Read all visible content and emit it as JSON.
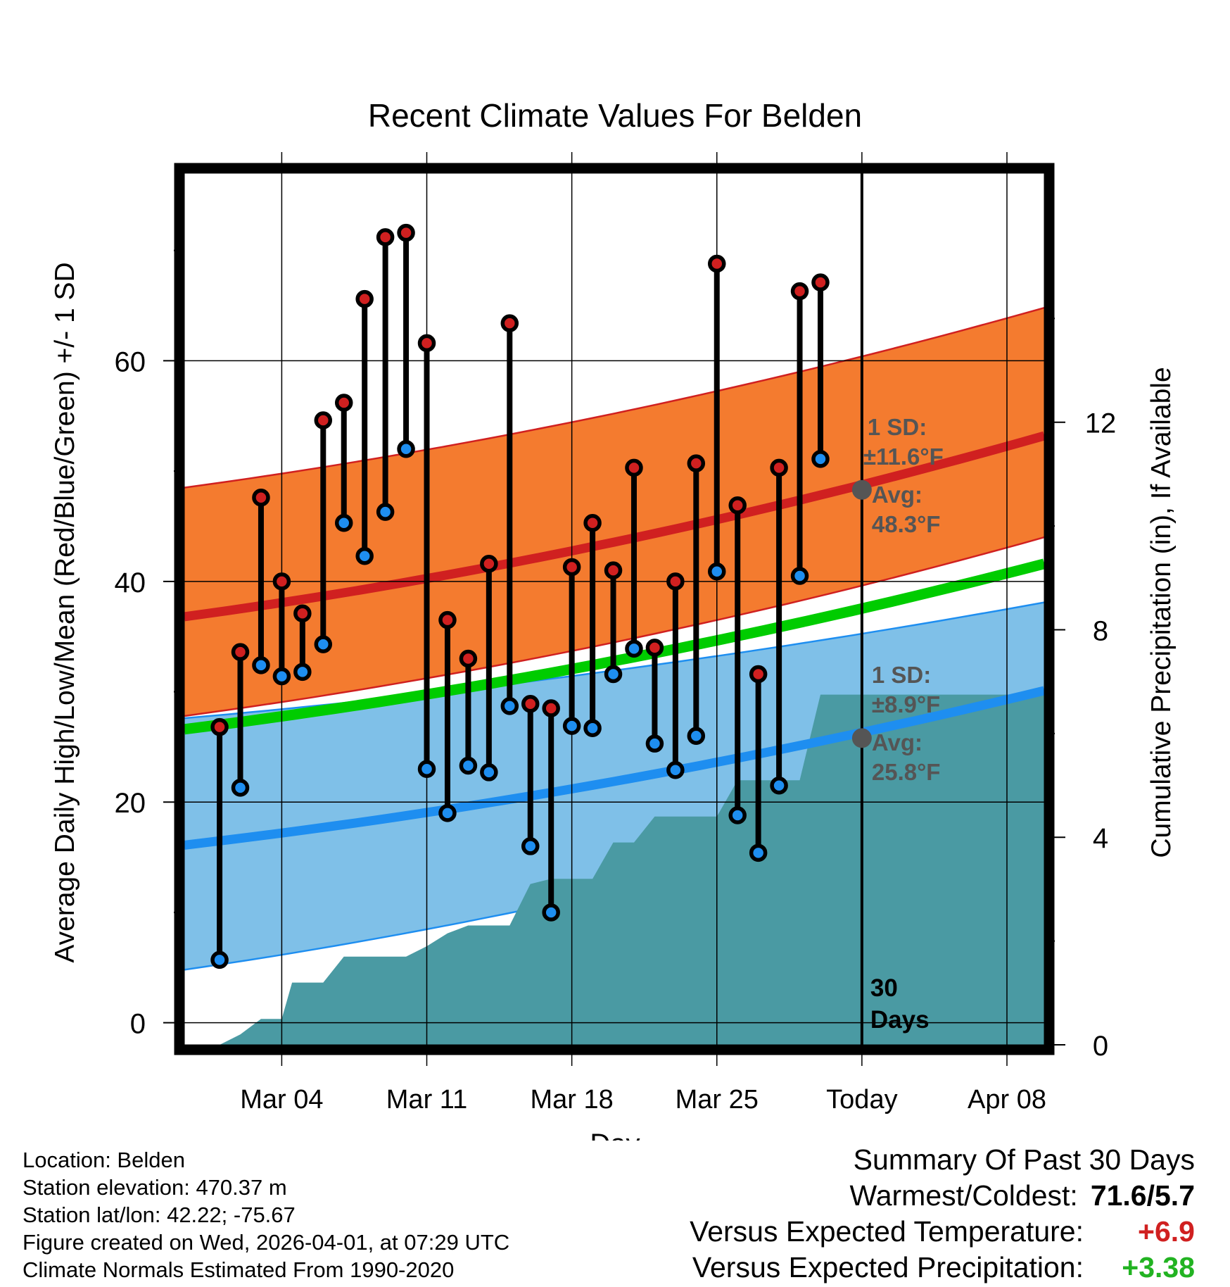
{
  "colors": {
    "high_band": "#f47b2f",
    "high_line": "#d02020",
    "low_band": "#7fc0e8",
    "low_line": "#1e8ef0",
    "mean_line": "#00cc00",
    "precip": "#4a9aa3",
    "today_marker": "#555555",
    "warm_text": "#d02020",
    "wet_text": "#22b322"
  },
  "chart_data": {
    "type": "line",
    "title": "Recent Climate Values For Belden",
    "xlabel": "Day",
    "ylabel": "Average Daily High/Low/Mean (Red/Blue/Green) +/- 1 SD",
    "y2label": "Cumulative Precipitation (in), If Available",
    "xlim": [
      -1.7,
      39.8
    ],
    "ylim": [
      -2,
      77
    ],
    "y2lim": [
      -0.0,
      16.8
    ],
    "xticks": [
      {
        "x": 3,
        "label": "Mar 04"
      },
      {
        "x": 10,
        "label": "Mar 11"
      },
      {
        "x": 17,
        "label": "Mar 18"
      },
      {
        "x": 24,
        "label": "Mar 25"
      },
      {
        "x": 31,
        "label": "Today"
      },
      {
        "x": 38,
        "label": "Apr 08"
      }
    ],
    "yticks": [
      0,
      20,
      40,
      60
    ],
    "y2ticks": [
      0,
      4,
      8,
      12
    ],
    "today_x": 31,
    "normals": {
      "x_start": -1.7,
      "x_end": 39.8,
      "high_avg": [
        36.8,
        53.2
      ],
      "high_sd_upper": [
        48.5,
        64.8
      ],
      "high_sd_lower": [
        27.8,
        44.0
      ],
      "low_avg": [
        16.1,
        30.1
      ],
      "low_sd_upper": [
        27.6,
        38.1
      ],
      "low_sd_lower": [
        4.8,
        22.2
      ],
      "mean_avg": [
        26.6,
        41.6
      ]
    },
    "today_labels": {
      "high_sd": "1 SD:",
      "high_sd_val": "±11.6°F",
      "high_avg": "Avg:",
      "high_avg_val": "48.3°F",
      "high_avg_num": 48.3,
      "low_sd": "1 SD:",
      "low_sd_val": "±8.9°F",
      "low_avg": "Avg:",
      "low_avg_val": "25.8°F",
      "low_avg_num": 25.8
    },
    "period_label_1": "30",
    "period_label_2": "Days",
    "series": [
      {
        "name": "High",
        "x": [
          0,
          1,
          2,
          3,
          4,
          5,
          6,
          7,
          8,
          9,
          10,
          11,
          12,
          13,
          14,
          15,
          16,
          17,
          18,
          19,
          20,
          21,
          22,
          23,
          24,
          25,
          26,
          27,
          28,
          29,
          30
        ],
        "values": [
          26.8,
          33.6,
          47.6,
          40.0,
          37.1,
          54.6,
          56.2,
          65.6,
          71.2,
          71.6,
          61.6,
          36.5,
          33.0,
          41.6,
          63.4,
          28.9,
          28.5,
          41.3,
          45.3,
          41.0,
          50.3,
          34.0,
          40.0,
          50.7,
          68.8,
          46.9,
          31.6,
          50.3,
          66.3,
          67.1,
          null
        ]
      },
      {
        "name": "Low",
        "x": [
          0,
          1,
          2,
          3,
          4,
          5,
          6,
          7,
          8,
          9,
          10,
          11,
          12,
          13,
          14,
          15,
          16,
          17,
          18,
          19,
          20,
          21,
          22,
          23,
          24,
          25,
          26,
          27,
          28,
          29,
          30
        ],
        "values": [
          5.7,
          21.3,
          32.4,
          31.4,
          31.8,
          34.3,
          45.3,
          42.3,
          46.3,
          52.0,
          23.0,
          19.0,
          23.3,
          22.7,
          28.7,
          16.0,
          10.0,
          26.9,
          26.7,
          31.6,
          33.9,
          25.3,
          22.9,
          26.0,
          40.9,
          18.8,
          15.4,
          21.5,
          40.5,
          51.1,
          null
        ]
      },
      {
        "name": "Cumulative Precipitation",
        "x": [
          -1.7,
          0,
          1,
          2,
          3,
          3.5,
          4,
          5,
          6,
          7,
          8,
          9,
          10,
          11,
          12,
          13,
          14,
          15,
          16,
          17,
          18,
          19,
          20,
          21,
          22,
          23,
          24,
          25,
          26,
          27,
          28,
          29,
          30,
          31,
          39.8
        ],
        "values": [
          0,
          0,
          0.2,
          0.5,
          0.5,
          1.2,
          1.2,
          1.2,
          1.7,
          1.7,
          1.7,
          1.7,
          1.9,
          2.15,
          2.3,
          2.3,
          2.3,
          3.1,
          3.2,
          3.2,
          3.2,
          3.9,
          3.9,
          4.4,
          4.4,
          4.4,
          4.4,
          5.1,
          5.1,
          5.1,
          5.1,
          6.75,
          6.75,
          6.75,
          6.75
        ]
      }
    ]
  },
  "footer": {
    "location": "Location: Belden",
    "elevation": "Station elevation: 470.37 m",
    "latlon": "Station lat/lon: 42.22; -75.67",
    "created": "Figure created on Wed, 2026-04-01, at 07:29 UTC",
    "normals": "Climate Normals Estimated From 1990-2020"
  },
  "summary": {
    "title": "Summary Of Past 30 Days",
    "warmest_label": "Warmest/Coldest:",
    "warmest_value": "71.6/5.7",
    "temp_label": "Versus Expected Temperature:",
    "temp_value": "+6.9",
    "precip_label": "Versus Expected Precipitation:",
    "precip_value": "+3.38"
  }
}
